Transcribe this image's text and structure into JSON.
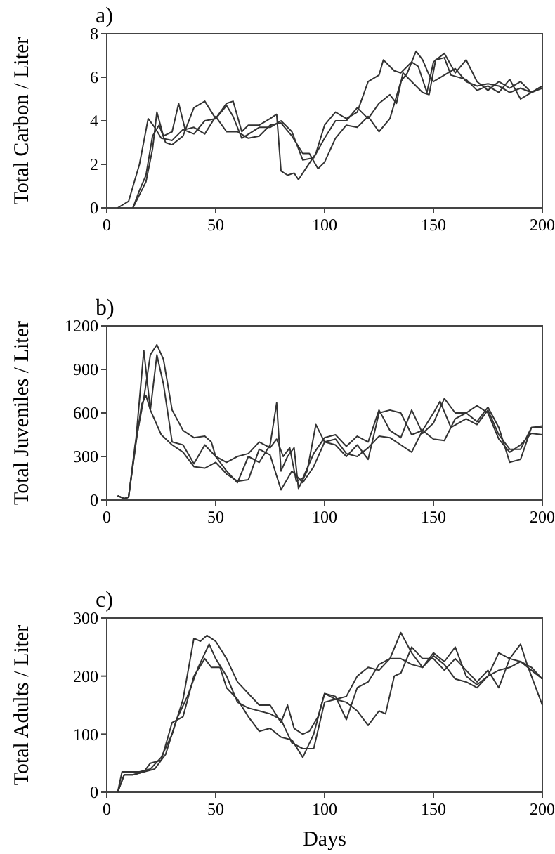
{
  "chart_data": [
    {
      "type": "line",
      "title": "a)",
      "ylabel": "Total Carbon / Liter",
      "xlim": [
        0,
        200
      ],
      "xticks": [
        0,
        50,
        100,
        150,
        200
      ],
      "ylim": [
        0,
        8
      ],
      "yticks": [
        0,
        2,
        4,
        6,
        8
      ],
      "grid": false,
      "line_style": "solid",
      "marker": "none",
      "series": [
        {
          "color": "#333333",
          "x": [
            5,
            10,
            15,
            19,
            22,
            25,
            30,
            35,
            40,
            45,
            50,
            55,
            58,
            62,
            65,
            70,
            75,
            78,
            80,
            83,
            86,
            88,
            92,
            96,
            100,
            105,
            110,
            115,
            120,
            125,
            127,
            132,
            135,
            140,
            143,
            147,
            150,
            155,
            160,
            165,
            170,
            175,
            180,
            185,
            190,
            195,
            200
          ],
          "values": [
            0,
            0.3,
            2,
            4.1,
            3.7,
            3.2,
            3.1,
            3.6,
            3.4,
            4,
            4.1,
            4.8,
            4.9,
            3.5,
            3.8,
            3.8,
            4.1,
            4.3,
            1.7,
            1.5,
            1.6,
            1.3,
            1.9,
            2.5,
            3.8,
            4.4,
            4.1,
            4.4,
            5.8,
            6.1,
            6.8,
            6.3,
            6.2,
            6.7,
            6.5,
            5.3,
            6.7,
            7.1,
            6.2,
            6.8,
            5.8,
            5.4,
            5.8,
            5.5,
            5.8,
            5.3,
            5.6
          ]
        },
        {
          "color": "#333333",
          "x": [
            12,
            15,
            18,
            21,
            23,
            26,
            30,
            33,
            36,
            40,
            45,
            50,
            55,
            60,
            65,
            70,
            75,
            80,
            85,
            90,
            93,
            97,
            100,
            105,
            110,
            115,
            120,
            125,
            130,
            135,
            138,
            142,
            145,
            148,
            150,
            155,
            160,
            165,
            170,
            175,
            180,
            185,
            190,
            195,
            200
          ],
          "values": [
            0,
            0.6,
            1.2,
            2.7,
            4.4,
            3.3,
            3.5,
            4.8,
            3.6,
            3.7,
            3.4,
            4.2,
            3.5,
            3.5,
            3.2,
            3.3,
            3.8,
            3.9,
            3.3,
            2.5,
            2.5,
            1.8,
            2.1,
            3.2,
            3.8,
            3.7,
            4.2,
            3.5,
            4.1,
            5.8,
            6.2,
            7.2,
            6.8,
            6.1,
            5.8,
            6.1,
            6.4,
            5.8,
            5.6,
            5.7,
            5.6,
            5.3,
            5.5,
            5.3,
            5.6
          ]
        },
        {
          "color": "#333333",
          "x": [
            12,
            15,
            18,
            21,
            24,
            27,
            30,
            35,
            40,
            45,
            50,
            55,
            58,
            62,
            70,
            75,
            80,
            85,
            90,
            95,
            100,
            105,
            110,
            115,
            120,
            125,
            130,
            133,
            136,
            140,
            145,
            148,
            151,
            155,
            158,
            165,
            170,
            175,
            180,
            185,
            190,
            195,
            200
          ],
          "values": [
            0,
            0.8,
            1.5,
            3.3,
            3.8,
            3,
            2.9,
            3.3,
            4.6,
            4.9,
            4.1,
            4.7,
            4.2,
            3.2,
            3.7,
            3.7,
            4,
            3.5,
            2.2,
            2.3,
            3.2,
            4,
            4,
            4.6,
            4.1,
            4.8,
            5.2,
            4.8,
            6.2,
            5.8,
            5.3,
            5.2,
            6.8,
            6.9,
            6.1,
            5.9,
            5.4,
            5.6,
            5.3,
            5.9,
            5,
            5.3,
            5.5
          ]
        }
      ]
    },
    {
      "type": "line",
      "title": "b)",
      "ylabel": "Total Juveniles / Liter",
      "xlim": [
        0,
        200
      ],
      "xticks": [
        0,
        50,
        100,
        150,
        200
      ],
      "ylim": [
        0,
        1200
      ],
      "yticks": [
        0,
        300,
        600,
        900,
        1200
      ],
      "grid": false,
      "line_style": "solid",
      "marker": "none",
      "series": [
        {
          "color": "#333333",
          "x": [
            5,
            8,
            10,
            13,
            17,
            20,
            23,
            26,
            30,
            35,
            40,
            45,
            50,
            55,
            60,
            65,
            70,
            75,
            78,
            80,
            83,
            86,
            88,
            92,
            96,
            100,
            105,
            110,
            115,
            120,
            125,
            130,
            135,
            140,
            145,
            150,
            153,
            158,
            165,
            170,
            175,
            180,
            185,
            190,
            195,
            200
          ],
          "values": [
            30,
            10,
            20,
            350,
            1030,
            620,
            1000,
            800,
            400,
            380,
            250,
            380,
            300,
            200,
            120,
            300,
            260,
            380,
            670,
            200,
            300,
            360,
            80,
            200,
            520,
            400,
            380,
            300,
            380,
            280,
            600,
            620,
            600,
            450,
            480,
            600,
            680,
            500,
            560,
            520,
            620,
            450,
            350,
            350,
            500,
            500
          ]
        },
        {
          "color": "#333333",
          "x": [
            5,
            8,
            10,
            13,
            17,
            20,
            23,
            26,
            30,
            35,
            40,
            45,
            48,
            50,
            55,
            60,
            65,
            70,
            75,
            78,
            81,
            84,
            87,
            90,
            95,
            100,
            105,
            110,
            115,
            120,
            125,
            130,
            135,
            140,
            145,
            150,
            155,
            160,
            165,
            170,
            175,
            180,
            185,
            190,
            195,
            200
          ],
          "values": [
            30,
            10,
            20,
            380,
            700,
            1000,
            1070,
            970,
            620,
            480,
            430,
            440,
            400,
            300,
            260,
            300,
            320,
            400,
            360,
            420,
            300,
            360,
            130,
            150,
            320,
            430,
            450,
            370,
            440,
            400,
            620,
            480,
            430,
            620,
            460,
            530,
            700,
            600,
            600,
            650,
            600,
            420,
            330,
            380,
            460,
            450
          ]
        },
        {
          "color": "#333333",
          "x": [
            5,
            8,
            10,
            13,
            16,
            18,
            20,
            25,
            30,
            35,
            40,
            45,
            50,
            55,
            60,
            65,
            70,
            75,
            80,
            85,
            90,
            95,
            100,
            105,
            110,
            115,
            120,
            125,
            130,
            135,
            140,
            145,
            150,
            155,
            160,
            165,
            170,
            175,
            180,
            185,
            190,
            195,
            200
          ],
          "values": [
            30,
            10,
            20,
            350,
            660,
            720,
            620,
            450,
            380,
            330,
            230,
            220,
            260,
            180,
            130,
            140,
            350,
            310,
            70,
            200,
            120,
            230,
            400,
            420,
            320,
            300,
            360,
            440,
            430,
            380,
            330,
            480,
            420,
            410,
            560,
            600,
            540,
            640,
            500,
            260,
            280,
            500,
            510
          ]
        }
      ]
    },
    {
      "type": "line",
      "title": "c)",
      "xlabel": "Days",
      "ylabel": "Total Adults / Liter",
      "xlim": [
        0,
        200
      ],
      "xticks": [
        0,
        50,
        100,
        150,
        200
      ],
      "ylim": [
        0,
        300
      ],
      "yticks": [
        0,
        100,
        200,
        300
      ],
      "grid": false,
      "line_style": "solid",
      "marker": "none",
      "series": [
        {
          "color": "#333333",
          "x": [
            5,
            7,
            10,
            15,
            20,
            25,
            30,
            35,
            40,
            43,
            46,
            50,
            55,
            60,
            65,
            70,
            75,
            80,
            83,
            86,
            90,
            93,
            97,
            100,
            105,
            110,
            115,
            120,
            125,
            130,
            135,
            140,
            145,
            150,
            155,
            160,
            165,
            170,
            175,
            180,
            185,
            190,
            193,
            197,
            200
          ],
          "values": [
            0,
            35,
            35,
            35,
            40,
            60,
            100,
            160,
            265,
            260,
            270,
            260,
            230,
            190,
            170,
            150,
            150,
            120,
            150,
            110,
            100,
            105,
            130,
            170,
            165,
            125,
            180,
            190,
            220,
            230,
            275,
            240,
            215,
            240,
            225,
            250,
            200,
            185,
            200,
            240,
            230,
            255,
            220,
            180,
            150
          ]
        },
        {
          "color": "#333333",
          "x": [
            5,
            8,
            12,
            17,
            20,
            25,
            30,
            35,
            40,
            45,
            48,
            52,
            55,
            60,
            65,
            70,
            75,
            80,
            85,
            90,
            95,
            100,
            105,
            110,
            115,
            120,
            125,
            128,
            132,
            135,
            140,
            145,
            150,
            155,
            160,
            165,
            170,
            175,
            180,
            185,
            190,
            195,
            200
          ],
          "values": [
            0,
            30,
            30,
            35,
            50,
            55,
            120,
            130,
            200,
            230,
            215,
            215,
            180,
            160,
            130,
            105,
            110,
            95,
            90,
            60,
            100,
            170,
            160,
            155,
            140,
            115,
            140,
            135,
            200,
            205,
            250,
            230,
            230,
            210,
            230,
            210,
            190,
            210,
            180,
            230,
            225,
            210,
            195
          ]
        },
        {
          "color": "#333333",
          "x": [
            5,
            8,
            12,
            17,
            22,
            27,
            32,
            37,
            42,
            47,
            50,
            55,
            60,
            65,
            70,
            75,
            80,
            85,
            90,
            95,
            100,
            105,
            110,
            115,
            120,
            125,
            130,
            135,
            140,
            145,
            150,
            155,
            160,
            165,
            170,
            175,
            180,
            185,
            190,
            195,
            200
          ],
          "values": [
            0,
            30,
            30,
            35,
            40,
            65,
            125,
            165,
            215,
            255,
            230,
            200,
            155,
            145,
            140,
            135,
            125,
            85,
            75,
            75,
            155,
            160,
            165,
            200,
            215,
            210,
            230,
            230,
            220,
            215,
            235,
            220,
            195,
            190,
            180,
            200,
            210,
            215,
            225,
            215,
            195
          ]
        }
      ]
    }
  ]
}
